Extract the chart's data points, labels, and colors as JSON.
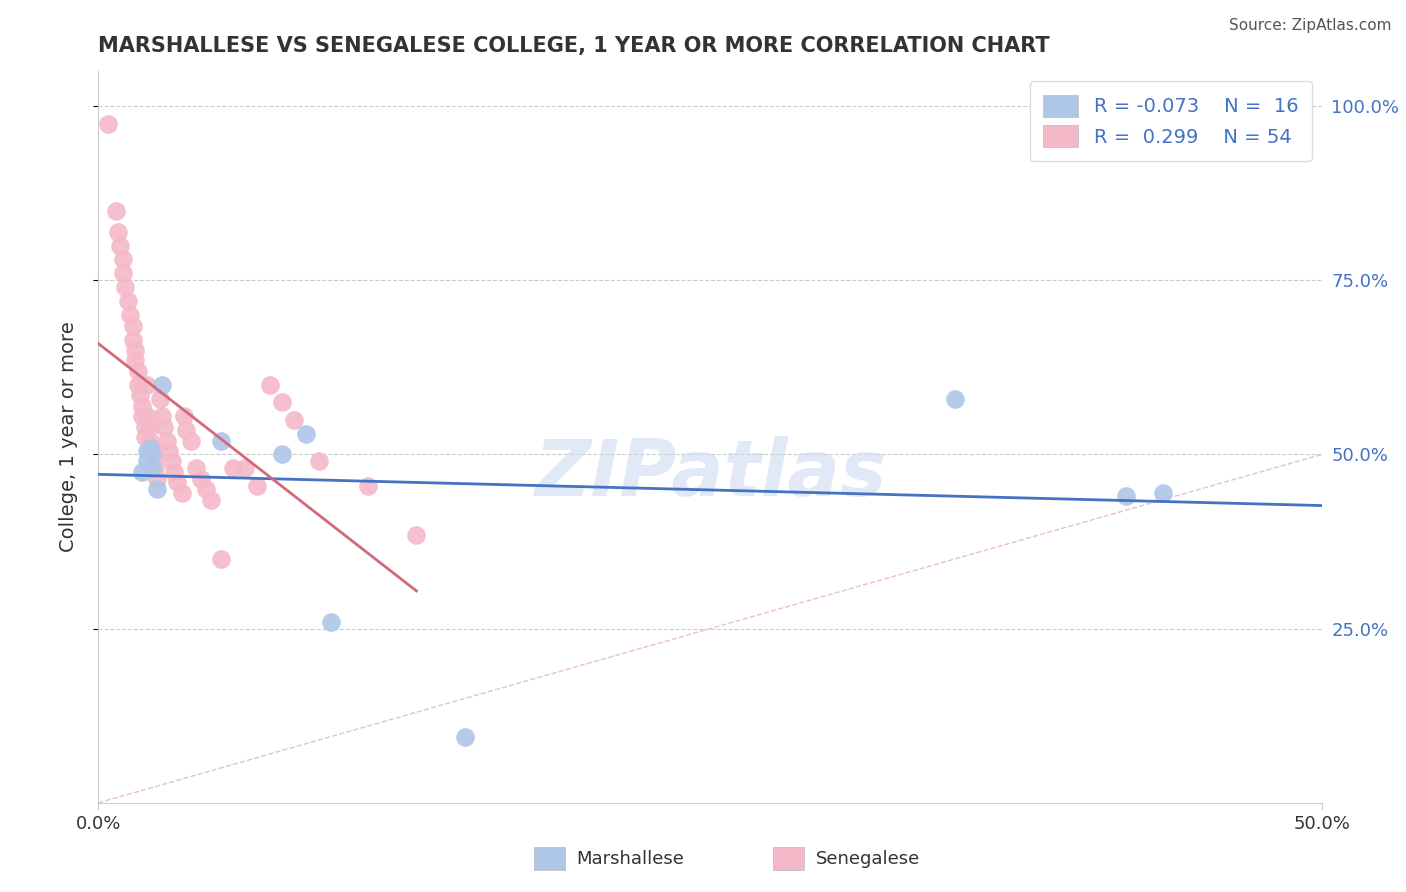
{
  "title": "MARSHALLESE VS SENEGALESE COLLEGE, 1 YEAR OR MORE CORRELATION CHART",
  "source": "Source: ZipAtlas.com",
  "ylabel_label": "College, 1 year or more",
  "xlabel_label_marshallese": "Marshallese",
  "xlabel_label_senegalese": "Senegalese",
  "xlim": [
    0.0,
    0.5
  ],
  "ylim": [
    0.0,
    1.05
  ],
  "legend_r_marshallese": "-0.073",
  "legend_n_marshallese": "16",
  "legend_r_senegalese": "0.299",
  "legend_n_senegalese": "54",
  "color_marshallese": "#aec6e8",
  "color_senegalese": "#f4b8c8",
  "color_marshallese_line": "#4472c4",
  "color_senegalese_line": "#d4687a",
  "color_identity_line": "#e8c0c8",
  "watermark": "ZIPatlas",
  "marshallese_x": [
    0.018,
    0.02,
    0.02,
    0.021,
    0.022,
    0.022,
    0.024,
    0.026,
    0.05,
    0.075,
    0.085,
    0.095,
    0.15,
    0.35,
    0.42,
    0.435
  ],
  "marshallese_y": [
    0.475,
    0.49,
    0.505,
    0.51,
    0.48,
    0.5,
    0.45,
    0.6,
    0.52,
    0.5,
    0.53,
    0.26,
    0.095,
    0.58,
    0.44,
    0.445
  ],
  "senegalese_x": [
    0.004,
    0.007,
    0.008,
    0.009,
    0.01,
    0.01,
    0.011,
    0.012,
    0.013,
    0.014,
    0.014,
    0.015,
    0.015,
    0.016,
    0.016,
    0.017,
    0.018,
    0.018,
    0.019,
    0.019,
    0.02,
    0.02,
    0.021,
    0.021,
    0.022,
    0.023,
    0.023,
    0.024,
    0.025,
    0.026,
    0.027,
    0.028,
    0.029,
    0.03,
    0.031,
    0.032,
    0.034,
    0.035,
    0.036,
    0.038,
    0.04,
    0.042,
    0.044,
    0.046,
    0.05,
    0.055,
    0.06,
    0.065,
    0.07,
    0.075,
    0.08,
    0.09,
    0.11,
    0.13
  ],
  "senegalese_y": [
    0.975,
    0.85,
    0.82,
    0.8,
    0.78,
    0.76,
    0.74,
    0.72,
    0.7,
    0.685,
    0.665,
    0.65,
    0.635,
    0.62,
    0.6,
    0.585,
    0.57,
    0.555,
    0.54,
    0.525,
    0.6,
    0.555,
    0.54,
    0.52,
    0.51,
    0.495,
    0.48,
    0.465,
    0.58,
    0.555,
    0.54,
    0.52,
    0.505,
    0.49,
    0.475,
    0.46,
    0.445,
    0.555,
    0.535,
    0.52,
    0.48,
    0.465,
    0.45,
    0.435,
    0.35,
    0.48,
    0.48,
    0.455,
    0.6,
    0.575,
    0.55,
    0.49,
    0.455,
    0.385
  ],
  "grid_color": "#cccccc",
  "background_color": "#ffffff",
  "title_fontsize": 15,
  "source_fontsize": 11,
  "tick_fontsize": 13,
  "label_fontsize": 14,
  "legend_fontsize": 14
}
